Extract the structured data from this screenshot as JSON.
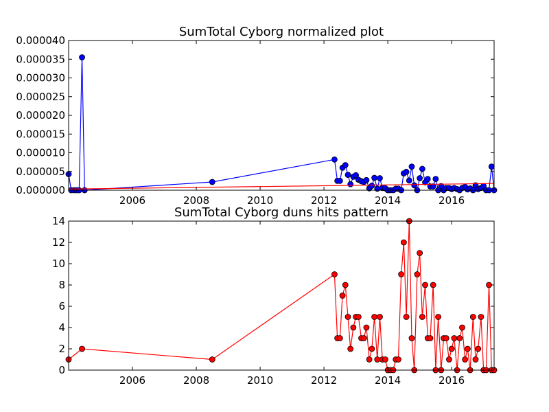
{
  "chart_data": [
    {
      "type": "line",
      "title": "SumTotal Cyborg normalized plot",
      "xlabel": "",
      "ylabel": "",
      "xlim": [
        2004.0,
        2017.33
      ],
      "ylim": [
        0,
        4e-05
      ],
      "x_ticks": [
        2006,
        2008,
        2010,
        2012,
        2014,
        2016
      ],
      "x_tick_labels": [
        "2006",
        "2008",
        "2010",
        "2012",
        "2014",
        "2016"
      ],
      "y_ticks": [
        0,
        5e-06,
        1e-05,
        1.5e-05,
        2e-05,
        2.5e-05,
        3e-05,
        3.5e-05,
        4e-05
      ],
      "y_tick_labels": [
        "0.000000",
        "0.000005",
        "0.000010",
        "0.000015",
        "0.000020",
        "0.000025",
        "0.000030",
        "0.000035",
        "0.000040"
      ],
      "grid": false,
      "series": [
        {
          "color": "#0000ff",
          "marker": "circle",
          "x": [
            2004.0,
            2004.08,
            2004.17,
            2004.25,
            2004.33,
            2004.42,
            2004.5,
            2008.5,
            2012.33,
            2012.42,
            2012.5,
            2012.58,
            2012.67,
            2012.75,
            2012.83,
            2012.92,
            2013.0,
            2013.08,
            2013.17,
            2013.25,
            2013.33,
            2013.42,
            2013.5,
            2013.58,
            2013.67,
            2013.75,
            2013.83,
            2013.92,
            2014.0,
            2014.08,
            2014.17,
            2014.25,
            2014.33,
            2014.42,
            2014.5,
            2014.58,
            2014.67,
            2014.75,
            2014.83,
            2014.92,
            2015.0,
            2015.08,
            2015.17,
            2015.25,
            2015.33,
            2015.42,
            2015.5,
            2015.58,
            2015.67,
            2015.75,
            2015.83,
            2015.92,
            2016.0,
            2016.08,
            2016.17,
            2016.25,
            2016.33,
            2016.42,
            2016.5,
            2016.58,
            2016.67,
            2016.75,
            2016.83,
            2016.92,
            2017.0,
            2017.08,
            2017.17,
            2017.25,
            2017.33
          ],
          "values": [
            4.3e-06,
            0,
            0,
            0,
            0,
            3.55e-05,
            0,
            2.2e-06,
            8.2e-06,
            2.5e-06,
            2.5e-06,
            6e-06,
            6.7e-06,
            4.1e-06,
            1.6e-06,
            3.6e-06,
            4e-06,
            2.8e-06,
            2.4e-06,
            2.2e-06,
            2.7e-06,
            5e-07,
            1.2e-06,
            3.3e-06,
            4e-07,
            3.2e-06,
            6e-07,
            5e-07,
            0,
            0,
            0,
            4e-07,
            4e-07,
            0,
            4.5e-06,
            4.9e-06,
            2.6e-06,
            6.3e-06,
            1.3e-06,
            0,
            3.2e-06,
            5.7e-06,
            2.1e-06,
            3e-06,
            1e-06,
            1e-06,
            3e-06,
            0,
            1.1e-06,
            0,
            6e-07,
            6e-07,
            3e-07,
            6e-07,
            3e-07,
            0,
            6e-07,
            9e-07,
            2e-07,
            5e-07,
            0,
            1.3e-06,
            3e-07,
            6e-07,
            1.1e-06,
            0,
            0,
            6.3e-06,
            0
          ]
        },
        {
          "color": "#ff0000",
          "marker": "none",
          "x": [
            2004.0,
            2017.33
          ],
          "values": [
            3e-07,
            1.8e-06
          ]
        }
      ]
    },
    {
      "type": "line",
      "title": "SumTotal Cyborg duns hits pattern",
      "xlabel": "",
      "ylabel": "",
      "xlim": [
        2004.0,
        2017.33
      ],
      "ylim": [
        0,
        14
      ],
      "x_ticks": [
        2006,
        2008,
        2010,
        2012,
        2014,
        2016
      ],
      "x_tick_labels": [
        "2006",
        "2008",
        "2010",
        "2012",
        "2014",
        "2016"
      ],
      "y_ticks": [
        0,
        2,
        4,
        6,
        8,
        10,
        12,
        14
      ],
      "y_tick_labels": [
        "0",
        "2",
        "4",
        "6",
        "8",
        "10",
        "12",
        "14"
      ],
      "grid": false,
      "series": [
        {
          "color": "#ff0000",
          "marker": "circle",
          "x": [
            2004.0,
            2004.42,
            2008.5,
            2012.33,
            2012.42,
            2012.5,
            2012.58,
            2012.67,
            2012.75,
            2012.83,
            2012.92,
            2013.0,
            2013.08,
            2013.17,
            2013.25,
            2013.33,
            2013.42,
            2013.5,
            2013.58,
            2013.67,
            2013.75,
            2013.83,
            2013.92,
            2014.0,
            2014.08,
            2014.17,
            2014.25,
            2014.33,
            2014.42,
            2014.5,
            2014.58,
            2014.67,
            2014.75,
            2014.83,
            2014.92,
            2015.0,
            2015.08,
            2015.17,
            2015.25,
            2015.33,
            2015.42,
            2015.5,
            2015.58,
            2015.67,
            2015.75,
            2015.83,
            2015.92,
            2016.0,
            2016.08,
            2016.17,
            2016.25,
            2016.33,
            2016.42,
            2016.5,
            2016.58,
            2016.67,
            2016.75,
            2016.83,
            2016.92,
            2017.0,
            2017.08,
            2017.17,
            2017.25,
            2017.33
          ],
          "values": [
            1,
            2,
            1,
            9,
            3,
            3,
            7,
            8,
            5,
            2,
            4,
            5,
            5,
            3,
            3,
            4,
            1,
            2,
            5,
            1,
            5,
            1,
            1,
            0,
            0,
            0,
            1,
            1,
            9,
            12,
            5,
            14,
            3,
            0,
            9,
            11,
            5,
            8,
            3,
            3,
            8,
            0,
            5,
            0,
            3,
            3,
            1,
            2,
            3,
            0,
            3,
            4,
            1,
            2,
            0,
            5,
            1,
            2,
            5,
            0,
            0,
            8,
            0,
            0
          ]
        }
      ]
    }
  ]
}
